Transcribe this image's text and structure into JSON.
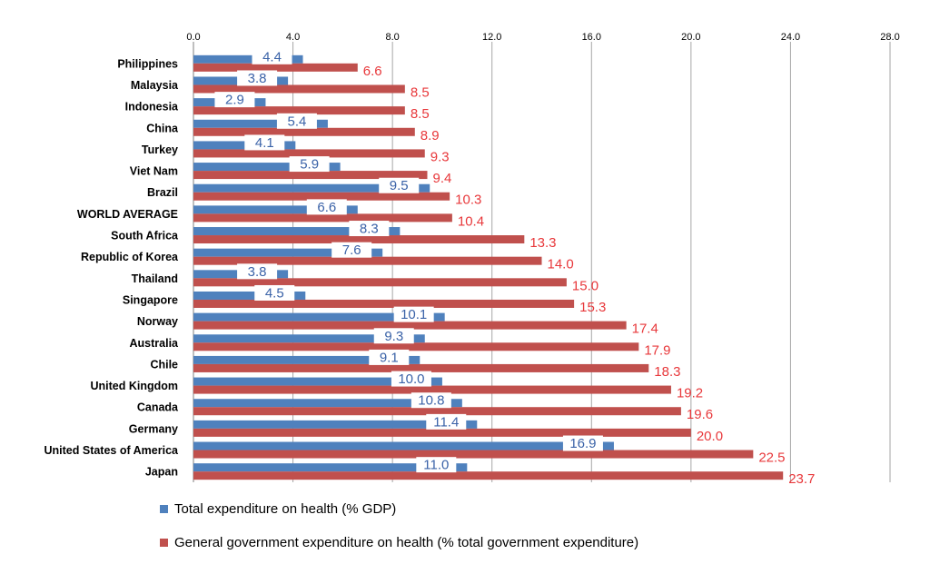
{
  "chart_data": {
    "type": "bar",
    "orientation": "horizontal",
    "title": "",
    "xlabel": "",
    "ylabel": "",
    "xlim": [
      0,
      28
    ],
    "x_ticks": [
      "0.0",
      "4.0",
      "8.0",
      "12.0",
      "16.0",
      "20.0",
      "24.0",
      "28.0"
    ],
    "grid": "vertical",
    "categories": [
      "Philippines",
      "Malaysia",
      "Indonesia",
      "China",
      "Turkey",
      "Viet Nam",
      "Brazil",
      "WORLD AVERAGE",
      "South Africa",
      "Republic of Korea",
      "Thailand",
      "Singapore",
      "Norway",
      "Australia",
      "Chile",
      "United Kingdom",
      "Canada",
      "Germany",
      "United States of America",
      "Japan"
    ],
    "series": [
      {
        "name": "Total expenditure on health (% GDP)",
        "color": "#4f81bd",
        "label_color": "#3b63a8",
        "values": [
          4.4,
          3.8,
          2.9,
          5.4,
          4.1,
          5.9,
          9.5,
          6.6,
          8.3,
          7.6,
          3.8,
          4.5,
          10.1,
          9.3,
          9.1,
          10.0,
          10.8,
          11.4,
          16.9,
          11.0
        ],
        "labels": [
          "4.4",
          "3.8",
          "2.9",
          "5.4",
          "4.1",
          "5.9",
          "9.5",
          "6.6",
          "8.3",
          "7.6",
          "3.8",
          "4.5",
          "10.1",
          "9.3",
          "9.1",
          "10.0",
          "10.8",
          "11.4",
          "16.9",
          "11.0"
        ]
      },
      {
        "name": "General government expenditure on health (% total government expenditure)",
        "color": "#c0504d",
        "label_color": "#e8383b",
        "values": [
          6.6,
          8.5,
          8.5,
          8.9,
          9.3,
          9.4,
          10.3,
          10.4,
          13.3,
          14.0,
          15.0,
          15.3,
          17.4,
          17.9,
          18.3,
          19.2,
          19.6,
          20.0,
          22.5,
          23.7
        ],
        "labels": [
          "6.6",
          "8.5",
          "8.5",
          "8.9",
          "9.3",
          "9.4",
          "10.3",
          "10.4",
          "13.3",
          "14.0",
          "15.0",
          "15.3",
          "17.4",
          "17.9",
          "18.3",
          "19.2",
          "19.6",
          "20.0",
          "22.5",
          "23.7"
        ]
      }
    ],
    "legend_position": "bottom"
  }
}
